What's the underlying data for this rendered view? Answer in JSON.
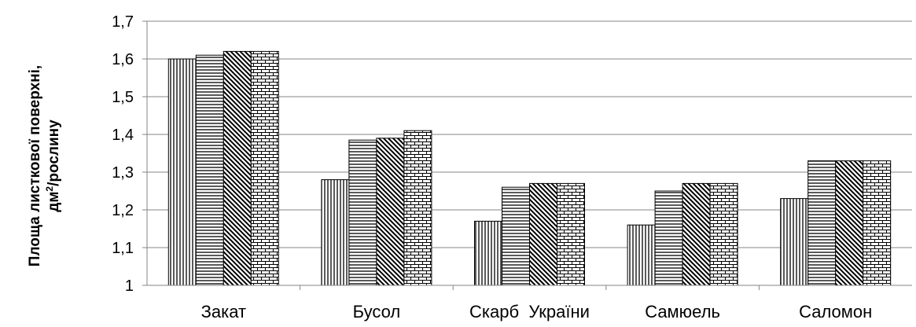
{
  "chart_data": {
    "type": "bar",
    "title": "",
    "xlabel": "",
    "ylabel_line1": "Площа листкової поверхні,",
    "ylabel_line2_prefix": "дм",
    "ylabel_line2_sup": "2",
    "ylabel_line2_suffix": "/рослину",
    "ylim": [
      1,
      1.7
    ],
    "yticks": [
      "1",
      "1,1",
      "1,2",
      "1,3",
      "1,4",
      "1,5",
      "1,6",
      "1,7"
    ],
    "categories": [
      "Закат",
      "Бусол",
      "Скарб  України",
      "Самюель",
      "Саломон"
    ],
    "series": [
      {
        "values": [
          1.6,
          1.28,
          1.17,
          1.16,
          1.23
        ],
        "pattern": "vertical"
      },
      {
        "values": [
          1.61,
          1.385,
          1.26,
          1.25,
          1.33
        ],
        "pattern": "horizontal"
      },
      {
        "values": [
          1.62,
          1.39,
          1.27,
          1.27,
          1.33
        ],
        "pattern": "diagonal"
      },
      {
        "values": [
          1.62,
          1.41,
          1.27,
          1.27,
          1.33
        ],
        "pattern": "brick"
      }
    ],
    "grid": true,
    "legend": "none",
    "colors": {
      "bar_stroke": "#000000",
      "grid": "#868686",
      "axis": "#868686"
    }
  }
}
